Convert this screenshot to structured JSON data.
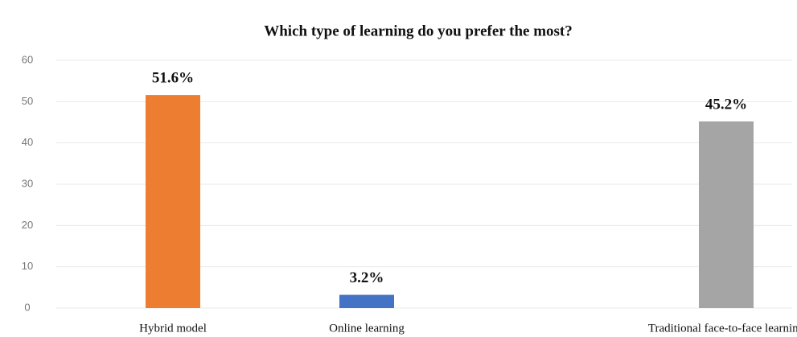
{
  "chart_data": {
    "type": "bar",
    "title": "Which type of learning do you prefer the most?",
    "categories": [
      "Hybrid model",
      "Online learning",
      "Traditional face-to-face learning"
    ],
    "values": [
      51.6,
      3.2,
      45.2
    ],
    "value_labels": [
      "51.6%",
      "3.2%",
      "45.2%"
    ],
    "colors": [
      "#ed7d31",
      "#4472c4",
      "#a5a5a5"
    ],
    "ylim": [
      0,
      60
    ],
    "yticks": [
      0,
      10,
      20,
      30,
      40,
      50,
      60
    ],
    "grid": true
  }
}
